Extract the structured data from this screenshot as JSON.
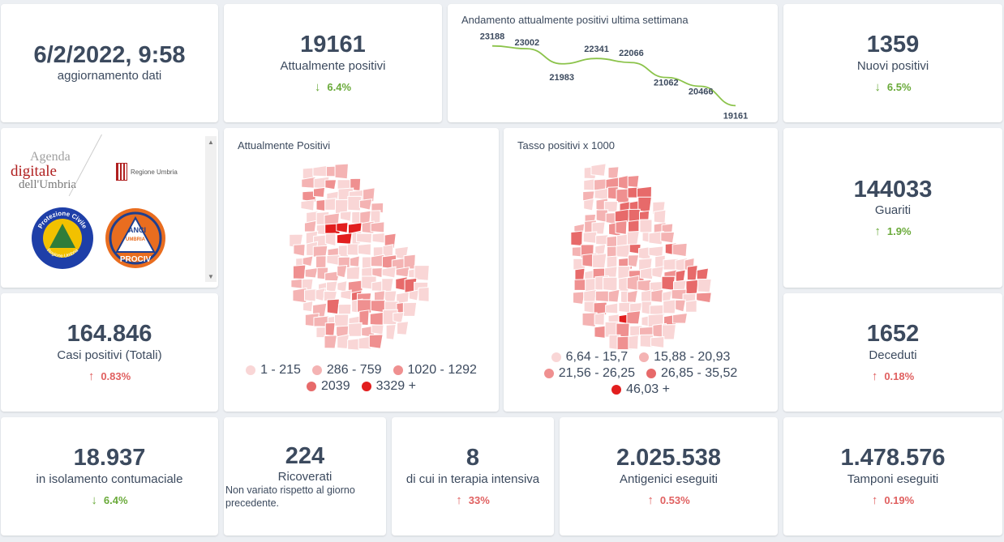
{
  "update": {
    "datetime": "6/2/2022, 9:58",
    "label": "aggiornamento dati"
  },
  "attualmente_positivi": {
    "value": "19161",
    "label": "Attualmente positivi",
    "change": "6.4%"
  },
  "trend": {
    "title": "Andamento attualmente positivi ultima settimana",
    "line_color": "#8bc34a"
  },
  "chart_data": {
    "type": "line",
    "title": "Andamento attualmente positivi ultima settimana",
    "x": [
      1,
      2,
      3,
      4,
      5,
      6,
      7,
      8
    ],
    "values": [
      23188,
      23002,
      21983,
      22341,
      22066,
      21062,
      20466,
      19161
    ],
    "labels": [
      "23188",
      "23002",
      "21983",
      "22341",
      "22066",
      "21062",
      "20466",
      "19161"
    ],
    "ylim": [
      18800,
      23500
    ],
    "grid": false
  },
  "nuovi_positivi": {
    "value": "1359",
    "label": "Nuovi positivi",
    "change": "6.5%"
  },
  "logos": {
    "agenda_top": "Agenda",
    "agenda_digitale": "digitale",
    "agenda_bottom": "dell'Umbria",
    "regione": "Regione Umbria",
    "protezione_civile_top": "Protezione Civile",
    "protezione_civile_bottom": "Regione Umbria",
    "anci_top": "ANCI",
    "anci_mid": "UMBRIA",
    "anci_bottom": "PROCIV"
  },
  "map_positivi": {
    "title": "Attualmente Positivi",
    "legend": [
      {
        "label": "1 - 215",
        "color": "#f9d6d6"
      },
      {
        "label": "286 - 759",
        "color": "#f4b3b3"
      },
      {
        "label": "1020 - 1292",
        "color": "#ef9090"
      },
      {
        "label": "2039",
        "color": "#e76a6a"
      },
      {
        "label": "3329 +",
        "color": "#e21e1e"
      }
    ]
  },
  "map_tasso": {
    "title": "Tasso positivi x 1000",
    "legend": [
      {
        "label": "6,64 - 15,7",
        "color": "#f9d6d6"
      },
      {
        "label": "15,88 - 20,93",
        "color": "#f4b3b3"
      },
      {
        "label": "21,56 - 26,25",
        "color": "#ef9090"
      },
      {
        "label": "26,85 - 35,52",
        "color": "#e76a6a"
      },
      {
        "label": "46,03 +",
        "color": "#e21e1e"
      }
    ]
  },
  "guariti": {
    "value": "144033",
    "label": "Guariti",
    "change": "1.9%"
  },
  "casi_totali": {
    "value": "164.846",
    "label": "Casi positivi (Totali)",
    "change": "0.83%"
  },
  "deceduti": {
    "value": "1652",
    "label": "Deceduti",
    "change": "0.18%"
  },
  "isolamento": {
    "value": "18.937",
    "label": "in isolamento contumaciale",
    "change": "6.4%"
  },
  "ricoverati": {
    "value": "224",
    "label": "Ricoverati",
    "note": "Non variato rispetto al giorno precedente."
  },
  "terapia": {
    "value": "8",
    "label": "di cui in terapia intensiva",
    "change": "33%"
  },
  "antigenici": {
    "value": "2.025.538",
    "label": "Antigenici eseguiti",
    "change": "0.53%"
  },
  "tamponi": {
    "value": "1.478.576",
    "label": "Tamponi eseguiti",
    "change": "0.19%"
  },
  "icons": {
    "up": "arrow-up-icon",
    "down": "arrow-down-icon"
  }
}
